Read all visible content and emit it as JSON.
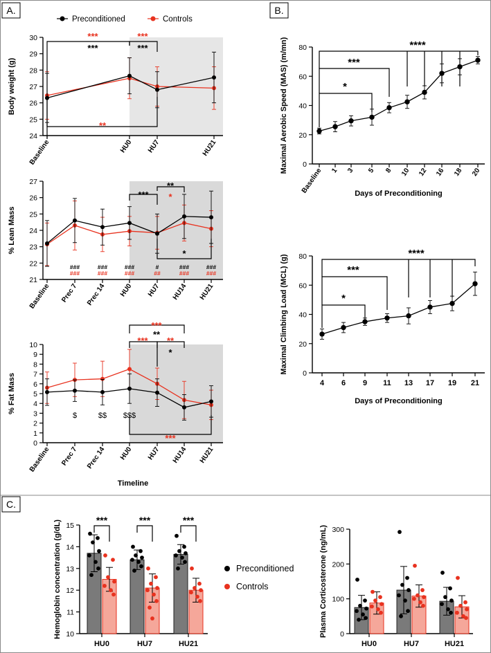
{
  "panel_labels": [
    "A.",
    "B.",
    "C."
  ],
  "colors": {
    "pre": "#000000",
    "ctl": "#e8321f",
    "shade_light": "#e6e6e6",
    "shade_dark": "#d9d9d9",
    "bar_pre": "#7a7a7a",
    "bar_ctl": "#f5a79a"
  },
  "chart_data": [
    {
      "id": "body-weight",
      "type": "line",
      "ylabel": "Body weight (g)",
      "xlabel": "",
      "ylim": [
        24,
        30
      ],
      "yticks": [
        24,
        25,
        26,
        27,
        28,
        29,
        30
      ],
      "categories": [
        "Baseline",
        "HU0",
        "HU7",
        "HU21"
      ],
      "legend": [
        "Preconditioned",
        "Controls"
      ],
      "series": [
        {
          "name": "Preconditioned",
          "values": [
            26.3,
            27.65,
            26.8,
            27.55
          ],
          "err": [
            1.5,
            1.1,
            1.1,
            1.55
          ]
        },
        {
          "name": "Controls",
          "values": [
            26.45,
            27.5,
            27.0,
            26.9
          ],
          "err": [
            1.45,
            1.25,
            1.2,
            1.3
          ]
        }
      ],
      "annotations": [
        "***",
        "***",
        "***",
        "***",
        "**"
      ]
    },
    {
      "id": "lean-mass",
      "type": "line",
      "ylabel": "% Lean Mass",
      "xlabel": "",
      "ylim": [
        21,
        27
      ],
      "yticks": [
        21,
        22,
        23,
        24,
        25,
        26,
        27
      ],
      "categories": [
        "Baseline",
        "Prec 7",
        "Prec 14",
        "HU0",
        "HU7",
        "HU14",
        "HU21"
      ],
      "series": [
        {
          "name": "Preconditioned",
          "values": [
            23.2,
            24.6,
            24.2,
            24.45,
            23.8,
            24.85,
            24.8
          ],
          "err": [
            1.4,
            1.35,
            1.1,
            1.0,
            1.2,
            1.35,
            1.6
          ]
        },
        {
          "name": "Controls",
          "values": [
            23.15,
            24.3,
            23.75,
            23.95,
            23.85,
            24.45,
            24.1
          ],
          "err": [
            1.3,
            1.5,
            1.05,
            0.9,
            1.0,
            1.1,
            1.1
          ]
        }
      ],
      "annotations": [
        "***",
        "**",
        "*",
        "*"
      ],
      "symbols_pre": [
        "",
        "",
        "###",
        "###",
        "###",
        "#",
        "###",
        "###"
      ],
      "symbols_ctl": [
        "",
        "",
        "###",
        "###",
        "###",
        "##",
        "###",
        "###"
      ]
    },
    {
      "id": "fat-mass",
      "type": "line",
      "ylabel": "% Fat Mass",
      "xlabel": "Timeline",
      "ylim": [
        0,
        10
      ],
      "yticks": [
        0,
        1,
        2,
        3,
        4,
        5,
        6,
        7,
        8,
        9,
        10
      ],
      "categories": [
        "Baseline",
        "Prec 7",
        "Prec 14",
        "HU0",
        "HU7",
        "HU14",
        "HU21"
      ],
      "series": [
        {
          "name": "Preconditioned",
          "values": [
            5.15,
            5.3,
            5.15,
            5.5,
            5.1,
            3.6,
            4.2
          ],
          "err": [
            1.35,
            1.1,
            1.3,
            1.5,
            1.4,
            1.3,
            1.6
          ]
        },
        {
          "name": "Controls",
          "values": [
            5.6,
            6.4,
            6.5,
            7.5,
            6.0,
            4.35,
            3.85
          ],
          "err": [
            1.6,
            1.7,
            1.8,
            2.0,
            1.6,
            1.9,
            1.5
          ]
        }
      ],
      "annotations": [
        "***",
        "***",
        "**",
        "**",
        "*",
        "***"
      ],
      "symbols": [
        "$",
        "$$",
        "$$$"
      ]
    },
    {
      "id": "mas",
      "type": "line",
      "ylabel": "Maximal Aerobic Speed (MAS) (m/mn)",
      "xlabel": "Days of  Preconditioning",
      "ylim": [
        0,
        80
      ],
      "yticks": [
        0,
        20,
        40,
        60,
        80
      ],
      "categories": [
        "Baseline",
        "1",
        "3",
        "5",
        "8",
        "10",
        "12",
        "16",
        "18",
        "20"
      ],
      "series": [
        {
          "name": "Preconditioned",
          "values": [
            22.5,
            25.5,
            29.5,
            32.0,
            38.5,
            42.5,
            49.0,
            62.0,
            66.5,
            71.0
          ],
          "err": [
            2.0,
            3.5,
            3.5,
            5.5,
            3.5,
            4.5,
            4.5,
            6.5,
            5.5,
            2.5
          ]
        }
      ],
      "annotations": [
        "****",
        "***",
        "*"
      ]
    },
    {
      "id": "mcl",
      "type": "line",
      "ylabel": "Maximal Climbing Load (MCL) (g)",
      "xlabel": "Days of Preconditioning",
      "ylim": [
        0,
        80
      ],
      "yticks": [
        0,
        20,
        40,
        60,
        80
      ],
      "categories": [
        "4",
        "6",
        "9",
        "11",
        "13",
        "17",
        "19",
        "21"
      ],
      "series": [
        {
          "name": "Preconditioned",
          "values": [
            26.5,
            31.0,
            35.0,
            37.5,
            39.0,
            45.0,
            47.5,
            61.0
          ],
          "err": [
            3.5,
            3.5,
            2.5,
            3.0,
            5.5,
            4.5,
            5.0,
            8.0
          ]
        }
      ],
      "annotations": [
        "****",
        "***",
        "*"
      ]
    },
    {
      "id": "hemoglobin",
      "type": "bar",
      "ylabel": "Hemoglobin concentration (g/dL)",
      "xlabel": "",
      "ylim": [
        10,
        15
      ],
      "yticks": [
        10,
        11,
        12,
        13,
        14,
        15
      ],
      "categories": [
        "HU0",
        "HU7",
        "HU21"
      ],
      "legend": [
        "Preconditioned",
        "Controls"
      ],
      "series": [
        {
          "name": "Preconditioned",
          "values": [
            13.7,
            13.4,
            13.65
          ],
          "err": [
            0.85,
            0.45,
            0.45
          ],
          "points": [
            [
              14.6,
              14.4,
              14.2,
              13.8,
              13.6,
              13.3,
              13.0,
              12.7
            ],
            [
              14.0,
              13.8,
              13.6,
              13.5,
              13.4,
              13.3,
              13.1,
              12.9
            ],
            [
              14.5,
              14.0,
              13.8,
              13.7,
              13.6,
              13.5,
              13.3,
              13.0
            ]
          ]
        },
        {
          "name": "Controls",
          "values": [
            12.5,
            12.1,
            12.0
          ],
          "err": [
            0.55,
            0.65,
            0.55
          ],
          "points": [
            [
              13.6,
              13.4,
              12.6,
              12.4,
              12.2,
              12.0,
              11.8
            ],
            [
              13.0,
              12.6,
              12.3,
              12.1,
              12.0,
              11.8,
              11.5,
              11.2,
              10.7
            ],
            [
              13.0,
              12.3,
              12.1,
              12.0,
              11.9,
              11.7,
              11.5
            ]
          ]
        }
      ],
      "annotations": [
        "***",
        "***",
        "***"
      ]
    },
    {
      "id": "corticosterone",
      "type": "bar",
      "ylabel": "Plasma Corticosterone (ng/mL)",
      "xlabel": "",
      "ylim": [
        0,
        300
      ],
      "yticks": [
        0,
        100,
        200,
        300
      ],
      "categories": [
        "HU0",
        "HU7",
        "HU21"
      ],
      "series": [
        {
          "name": "Preconditioned",
          "values": [
            75,
            125,
            93
          ],
          "err": [
            35,
            68,
            40
          ],
          "points": [
            [
              155,
              95,
              80,
              72,
              65,
              55,
              45,
              40
            ],
            [
              292,
              160,
              140,
              125,
              110,
              95,
              65,
              50
            ],
            [
              175,
              130,
              105,
              95,
              85,
              70,
              60
            ]
          ]
        },
        {
          "name": "Controls",
          "values": [
            88,
            108,
            77
          ],
          "err": [
            32,
            32,
            32
          ],
          "points": [
            [
              120,
              105,
              95,
              85,
              78,
              70,
              60
            ],
            [
              195,
              125,
              110,
              105,
              100,
              90,
              80
            ],
            [
              160,
              90,
              80,
              70,
              60,
              50,
              45
            ]
          ]
        }
      ]
    }
  ]
}
